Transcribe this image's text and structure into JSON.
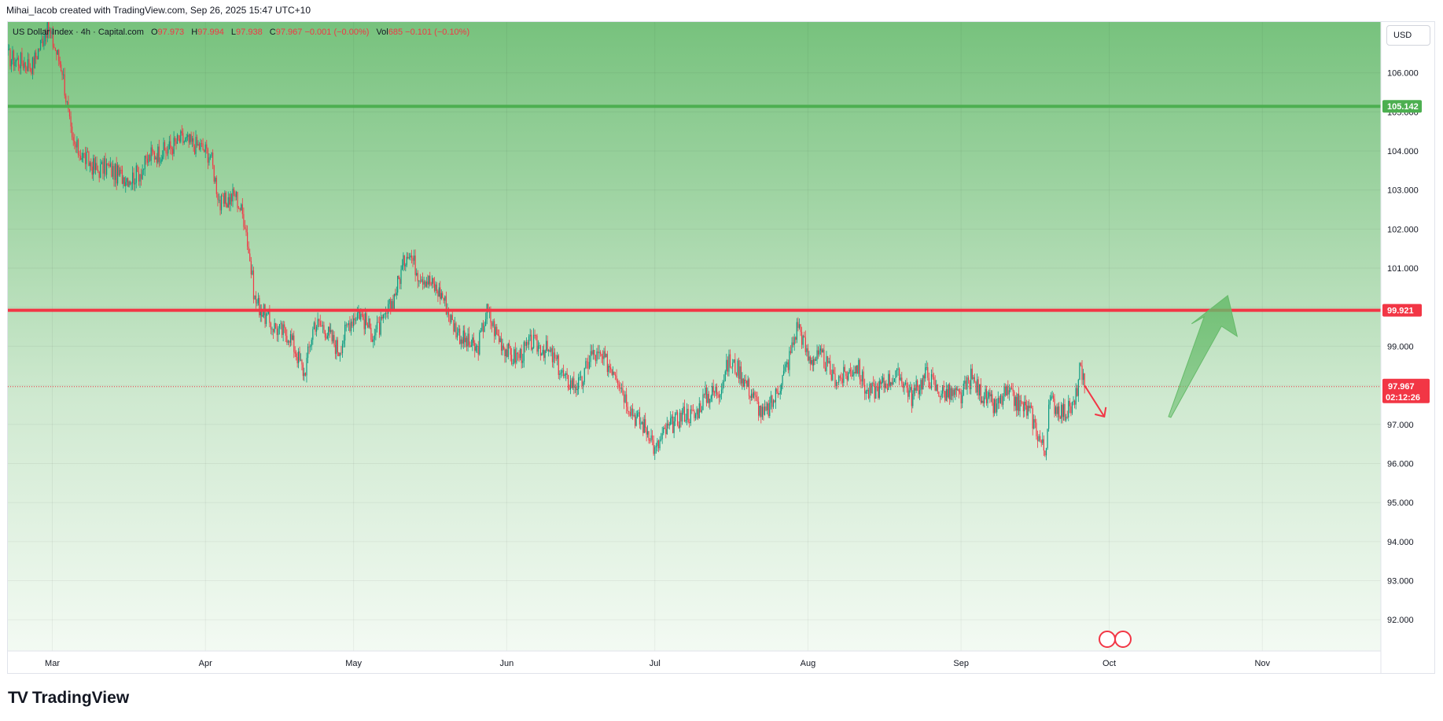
{
  "header": {
    "attribution": "Mihai_Iacob created with TradingView.com, Sep 26, 2025 15:47 UTC+10"
  },
  "legend": {
    "symbol": "US Dollar Index · 4h · Capital.com",
    "o_label": "O",
    "o_value": "97.973",
    "h_label": "H",
    "h_value": "97.994",
    "l_label": "L",
    "l_value": "97.938",
    "c_label": "C",
    "c_value": "97.967",
    "change": "−0.001 (−0.00%)",
    "vol_label": "Vol",
    "vol_value": "685",
    "vol_change": "−0.101 (−0.10%)"
  },
  "toolbar": {
    "currency_label": "USD"
  },
  "footer": {
    "brand": "TradingView",
    "mark": "TV"
  },
  "colors": {
    "up": "#089981",
    "down": "#f23645",
    "resistance_line": "#4caf50",
    "support_line": "#f23645",
    "zone_top": "#77c27d",
    "zone_bottom": "#f3faf3",
    "arrow_green": "#66bb6a",
    "arrow_red": "#f23645"
  },
  "chart_data": {
    "type": "candlestick",
    "interval": "4h",
    "ylim": [
      91.2,
      107.3
    ],
    "y_ticks": [
      "106.000",
      "105.000",
      "104.000",
      "103.000",
      "102.000",
      "101.000",
      "100.000",
      "99.000",
      "98.000",
      "97.000",
      "96.000",
      "95.000",
      "94.000",
      "93.000",
      "92.000"
    ],
    "x_ticks": [
      "Mar",
      "Apr",
      "May",
      "Jun",
      "Jul",
      "Aug",
      "Sep",
      "Oct",
      "Nov"
    ],
    "x_domain": [
      "2025-02-20",
      "2025-11-25"
    ],
    "levels": [
      {
        "name": "resistance",
        "value": 105.142,
        "label": "105.142"
      },
      {
        "name": "support",
        "value": 99.921,
        "label": "99.921"
      }
    ],
    "last_price": {
      "value": 97.967,
      "label": "97.967",
      "countdown": "02:12:26"
    },
    "series_close": [
      {
        "date": "2025-02-20",
        "close": 106.4
      },
      {
        "date": "2025-02-25",
        "close": 106.2
      },
      {
        "date": "2025-02-28",
        "close": 107.2
      },
      {
        "date": "2025-03-03",
        "close": 106.1
      },
      {
        "date": "2025-03-05",
        "close": 104.2
      },
      {
        "date": "2025-03-07",
        "close": 103.9
      },
      {
        "date": "2025-03-10",
        "close": 103.5
      },
      {
        "date": "2025-03-12",
        "close": 103.6
      },
      {
        "date": "2025-03-14",
        "close": 103.4
      },
      {
        "date": "2025-03-17",
        "close": 103.3
      },
      {
        "date": "2025-03-19",
        "close": 103.5
      },
      {
        "date": "2025-03-21",
        "close": 103.9
      },
      {
        "date": "2025-03-24",
        "close": 104.0
      },
      {
        "date": "2025-03-27",
        "close": 104.3
      },
      {
        "date": "2025-03-31",
        "close": 104.1
      },
      {
        "date": "2025-04-02",
        "close": 103.9
      },
      {
        "date": "2025-04-04",
        "close": 102.6
      },
      {
        "date": "2025-04-07",
        "close": 102.9
      },
      {
        "date": "2025-04-09",
        "close": 102.2
      },
      {
        "date": "2025-04-11",
        "close": 100.2
      },
      {
        "date": "2025-04-14",
        "close": 99.6
      },
      {
        "date": "2025-04-16",
        "close": 99.4
      },
      {
        "date": "2025-04-18",
        "close": 99.3
      },
      {
        "date": "2025-04-21",
        "close": 98.3
      },
      {
        "date": "2025-04-23",
        "close": 99.6
      },
      {
        "date": "2025-04-25",
        "close": 99.5
      },
      {
        "date": "2025-04-28",
        "close": 98.9
      },
      {
        "date": "2025-04-30",
        "close": 99.6
      },
      {
        "date": "2025-05-02",
        "close": 99.9
      },
      {
        "date": "2025-05-05",
        "close": 99.3
      },
      {
        "date": "2025-05-07",
        "close": 99.6
      },
      {
        "date": "2025-05-09",
        "close": 100.2
      },
      {
        "date": "2025-05-12",
        "close": 101.5
      },
      {
        "date": "2025-05-14",
        "close": 100.9
      },
      {
        "date": "2025-05-16",
        "close": 100.7
      },
      {
        "date": "2025-05-19",
        "close": 100.3
      },
      {
        "date": "2025-05-21",
        "close": 99.6
      },
      {
        "date": "2025-05-23",
        "close": 99.2
      },
      {
        "date": "2025-05-26",
        "close": 98.9
      },
      {
        "date": "2025-05-28",
        "close": 99.9
      },
      {
        "date": "2025-05-30",
        "close": 99.3
      },
      {
        "date": "2025-06-02",
        "close": 98.7
      },
      {
        "date": "2025-06-04",
        "close": 98.8
      },
      {
        "date": "2025-06-06",
        "close": 99.1
      },
      {
        "date": "2025-06-09",
        "close": 98.9
      },
      {
        "date": "2025-06-11",
        "close": 98.6
      },
      {
        "date": "2025-06-13",
        "close": 98.1
      },
      {
        "date": "2025-06-16",
        "close": 98.0
      },
      {
        "date": "2025-06-18",
        "close": 98.8
      },
      {
        "date": "2025-06-20",
        "close": 98.7
      },
      {
        "date": "2025-06-23",
        "close": 98.4
      },
      {
        "date": "2025-06-25",
        "close": 97.7
      },
      {
        "date": "2025-06-27",
        "close": 97.2
      },
      {
        "date": "2025-06-30",
        "close": 96.8
      },
      {
        "date": "2025-07-01",
        "close": 96.3
      },
      {
        "date": "2025-07-03",
        "close": 96.8
      },
      {
        "date": "2025-07-07",
        "close": 97.3
      },
      {
        "date": "2025-07-09",
        "close": 97.2
      },
      {
        "date": "2025-07-11",
        "close": 97.7
      },
      {
        "date": "2025-07-14",
        "close": 97.9
      },
      {
        "date": "2025-07-16",
        "close": 98.6
      },
      {
        "date": "2025-07-18",
        "close": 98.4
      },
      {
        "date": "2025-07-21",
        "close": 97.7
      },
      {
        "date": "2025-07-23",
        "close": 97.2
      },
      {
        "date": "2025-07-25",
        "close": 97.6
      },
      {
        "date": "2025-07-28",
        "close": 98.6
      },
      {
        "date": "2025-07-30",
        "close": 99.6
      },
      {
        "date": "2025-08-01",
        "close": 98.7
      },
      {
        "date": "2025-08-04",
        "close": 98.7
      },
      {
        "date": "2025-08-06",
        "close": 98.2
      },
      {
        "date": "2025-08-08",
        "close": 98.2
      },
      {
        "date": "2025-08-11",
        "close": 98.5
      },
      {
        "date": "2025-08-13",
        "close": 97.8
      },
      {
        "date": "2025-08-15",
        "close": 97.9
      },
      {
        "date": "2025-08-18",
        "close": 98.2
      },
      {
        "date": "2025-08-20",
        "close": 98.2
      },
      {
        "date": "2025-08-22",
        "close": 97.7
      },
      {
        "date": "2025-08-25",
        "close": 98.3
      },
      {
        "date": "2025-08-27",
        "close": 97.9
      },
      {
        "date": "2025-08-29",
        "close": 97.8
      },
      {
        "date": "2025-09-01",
        "close": 97.7
      },
      {
        "date": "2025-09-03",
        "close": 98.2
      },
      {
        "date": "2025-09-05",
        "close": 97.8
      },
      {
        "date": "2025-09-08",
        "close": 97.4
      },
      {
        "date": "2025-09-10",
        "close": 97.8
      },
      {
        "date": "2025-09-12",
        "close": 97.6
      },
      {
        "date": "2025-09-15",
        "close": 97.3
      },
      {
        "date": "2025-09-17",
        "close": 96.6
      },
      {
        "date": "2025-09-18",
        "close": 96.3
      },
      {
        "date": "2025-09-19",
        "close": 97.6
      },
      {
        "date": "2025-09-22",
        "close": 97.3
      },
      {
        "date": "2025-09-24",
        "close": 97.5
      },
      {
        "date": "2025-09-25",
        "close": 98.4
      },
      {
        "date": "2025-09-26",
        "close": 97.967
      }
    ],
    "annotations": [
      {
        "name": "projection-arrow-down",
        "from": {
          "date": "2025-09-26",
          "value": 98.0
        },
        "to": {
          "date": "2025-09-30",
          "value": 97.2
        }
      },
      {
        "name": "projection-arrow-up",
        "from": {
          "date": "2025-10-13",
          "value": 97.2
        },
        "to": {
          "date": "2025-10-25",
          "value": 100.3
        }
      }
    ]
  }
}
